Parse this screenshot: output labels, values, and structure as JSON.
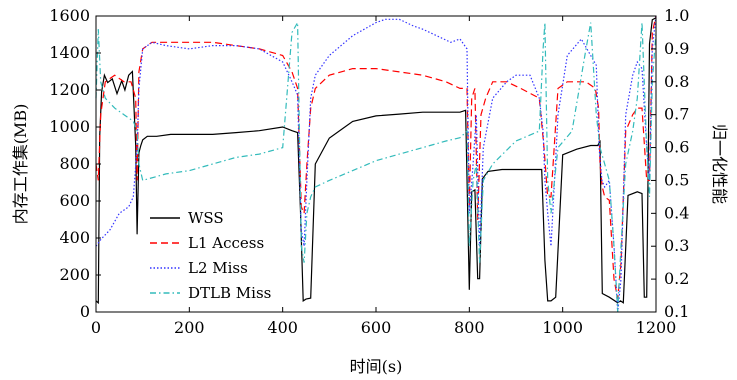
{
  "chart_data": {
    "type": "line",
    "xlabel": "时间(s)",
    "ylabel_left": "内存工作集(MB)",
    "ylabel_right": "归一化性能",
    "xlim": [
      0,
      1200
    ],
    "ylim_left": [
      0,
      1600
    ],
    "ylim_right": [
      0.1,
      1.0
    ],
    "x_ticks": [
      0,
      200,
      400,
      600,
      800,
      1000,
      1200
    ],
    "y_ticks_left": [
      0,
      200,
      400,
      600,
      800,
      1000,
      1200,
      1400,
      1600
    ],
    "y_ticks_right": [
      0.1,
      0.2,
      0.3,
      0.4,
      0.5,
      0.6,
      0.7,
      0.8,
      0.9,
      1.0
    ],
    "y_tick_labels_right": [
      "0.1",
      "0.2",
      "0.3",
      "0.4",
      "0.5",
      "0.6",
      "0.7",
      "0.8",
      "0.9",
      "1.0"
    ],
    "legend_position": "lower-left",
    "grid": false,
    "series": [
      {
        "name": "WSS",
        "axis": "left",
        "color": "#000000",
        "style": "solid",
        "x": [
          0,
          5,
          8,
          12,
          18,
          25,
          35,
          45,
          55,
          62,
          70,
          78,
          85,
          88,
          92,
          96,
          100,
          110,
          130,
          160,
          200,
          250,
          300,
          350,
          400,
          420,
          432,
          438,
          444,
          450,
          460,
          470,
          500,
          550,
          600,
          650,
          700,
          750,
          780,
          792,
          800,
          805,
          812,
          818,
          822,
          828,
          840,
          870,
          900,
          930,
          955,
          962,
          968,
          975,
          985,
          1000,
          1030,
          1060,
          1075,
          1080,
          1085,
          1100,
          1118,
          1124,
          1130,
          1140,
          1160,
          1170,
          1175,
          1180,
          1186,
          1192,
          1200
        ],
        "values": [
          60,
          50,
          950,
          1190,
          1280,
          1240,
          1260,
          1180,
          1250,
          1200,
          1280,
          1300,
          900,
          420,
          860,
          900,
          930,
          950,
          950,
          960,
          960,
          960,
          970,
          980,
          1000,
          980,
          970,
          560,
          60,
          70,
          75,
          800,
          940,
          1030,
          1060,
          1070,
          1080,
          1080,
          1080,
          1090,
          120,
          650,
          660,
          180,
          180,
          720,
          760,
          770,
          770,
          770,
          770,
          280,
          60,
          60,
          80,
          850,
          880,
          900,
          900,
          920,
          100,
          80,
          50,
          60,
          50,
          630,
          650,
          640,
          80,
          80,
          1450,
          1580,
          1590
        ]
      },
      {
        "name": "L1 Access",
        "axis": "right",
        "color": "#ff0000",
        "style": "dashed",
        "x": [
          0,
          5,
          10,
          20,
          40,
          60,
          75,
          85,
          88,
          92,
          100,
          120,
          150,
          200,
          250,
          300,
          350,
          400,
          420,
          432,
          440,
          446,
          452,
          460,
          470,
          500,
          550,
          600,
          650,
          700,
          750,
          780,
          795,
          800,
          805,
          812,
          818,
          825,
          835,
          850,
          880,
          910,
          950,
          960,
          968,
          975,
          990,
          1010,
          1050,
          1070,
          1077,
          1080,
          1085,
          1090,
          1100,
          1110,
          1118,
          1125,
          1135,
          1150,
          1160,
          1170,
          1180,
          1186,
          1192,
          1200
        ],
        "values": [
          0.55,
          0.5,
          0.7,
          0.8,
          0.82,
          0.8,
          0.8,
          0.75,
          0.5,
          0.83,
          0.9,
          0.92,
          0.92,
          0.92,
          0.92,
          0.91,
          0.9,
          0.88,
          0.83,
          0.78,
          0.42,
          0.4,
          0.55,
          0.72,
          0.78,
          0.82,
          0.84,
          0.84,
          0.83,
          0.82,
          0.8,
          0.78,
          0.78,
          0.42,
          0.75,
          0.78,
          0.38,
          0.7,
          0.75,
          0.8,
          0.8,
          0.78,
          0.75,
          0.6,
          0.45,
          0.45,
          0.78,
          0.8,
          0.8,
          0.78,
          0.72,
          0.55,
          0.48,
          0.45,
          0.44,
          0.2,
          0.14,
          0.25,
          0.65,
          0.7,
          0.72,
          0.72,
          0.5,
          0.5,
          0.95,
          1.0
        ]
      },
      {
        "name": "L2 Miss",
        "axis": "right",
        "color": "#3333ff",
        "style": "dotted",
        "x": [
          0,
          10,
          30,
          50,
          70,
          80,
          88,
          92,
          100,
          120,
          150,
          200,
          250,
          300,
          350,
          400,
          420,
          432,
          440,
          446,
          452,
          460,
          470,
          500,
          550,
          600,
          620,
          650,
          680,
          700,
          730,
          760,
          780,
          795,
          800,
          808,
          815,
          822,
          830,
          850,
          880,
          900,
          930,
          950,
          958,
          962,
          968,
          975,
          990,
          1010,
          1040,
          1060,
          1072,
          1078,
          1084,
          1090,
          1100,
          1110,
          1118,
          1125,
          1135,
          1150,
          1160,
          1170,
          1180,
          1186,
          1192,
          1200
        ],
        "values": [
          0.3,
          0.32,
          0.35,
          0.4,
          0.42,
          0.45,
          0.6,
          0.78,
          0.9,
          0.92,
          0.91,
          0.9,
          0.91,
          0.91,
          0.9,
          0.86,
          0.8,
          0.76,
          0.35,
          0.3,
          0.5,
          0.75,
          0.82,
          0.88,
          0.94,
          0.98,
          0.99,
          0.99,
          0.97,
          0.96,
          0.94,
          0.92,
          0.93,
          0.9,
          0.4,
          0.55,
          0.7,
          0.3,
          0.6,
          0.75,
          0.8,
          0.82,
          0.82,
          0.75,
          0.65,
          0.5,
          0.4,
          0.3,
          0.7,
          0.88,
          0.93,
          0.88,
          0.85,
          0.6,
          0.5,
          0.48,
          0.5,
          0.3,
          0.1,
          0.2,
          0.7,
          0.82,
          0.86,
          0.84,
          0.6,
          0.5,
          0.9,
          1.0
        ]
      },
      {
        "name": "DTLB Miss",
        "axis": "right",
        "color": "#33bbbb",
        "style": "dashdot",
        "x": [
          0,
          5,
          10,
          20,
          40,
          60,
          80,
          88,
          92,
          100,
          150,
          200,
          250,
          300,
          350,
          400,
          420,
          432,
          440,
          446,
          452,
          460,
          470,
          500,
          550,
          600,
          650,
          700,
          750,
          780,
          795,
          800,
          808,
          815,
          822,
          830,
          850,
          900,
          950,
          958,
          962,
          968,
          975,
          990,
          1020,
          1050,
          1060,
          1072,
          1080,
          1090,
          1100,
          1110,
          1118,
          1125,
          1135,
          1150,
          1160,
          1170,
          1180,
          1186,
          1192,
          1200
        ],
        "values": [
          0.75,
          0.96,
          0.8,
          0.75,
          0.72,
          0.7,
          0.68,
          0.65,
          0.55,
          0.5,
          0.52,
          0.53,
          0.55,
          0.57,
          0.58,
          0.6,
          0.95,
          0.98,
          0.3,
          0.25,
          0.4,
          0.45,
          0.48,
          0.5,
          0.53,
          0.56,
          0.58,
          0.6,
          0.62,
          0.63,
          0.65,
          0.3,
          0.5,
          0.55,
          0.25,
          0.5,
          0.55,
          0.62,
          0.65,
          0.9,
          0.98,
          0.5,
          0.4,
          0.6,
          0.65,
          0.9,
          0.98,
          0.7,
          0.6,
          0.55,
          0.5,
          0.3,
          0.1,
          0.3,
          0.55,
          0.65,
          0.75,
          0.98,
          0.6,
          0.45,
          0.8,
          0.95
        ]
      }
    ]
  }
}
